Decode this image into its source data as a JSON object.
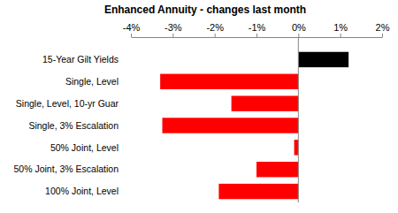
{
  "chart_data": {
    "type": "bar",
    "orientation": "horizontal",
    "title": "Enhanced Annuity - changes last month",
    "categories": [
      "15-Year Gilt Yields",
      "Single, Level",
      "Single, Level, 10-yr Guar",
      "Single, 3% Escalation",
      "50% Joint, Level",
      "50% Joint, 3% Escalation",
      "100% Joint, Level"
    ],
    "values": [
      1.2,
      -3.3,
      -1.6,
      -3.25,
      -0.1,
      -1.0,
      -1.9
    ],
    "colors": [
      "#000000",
      "#ff0000",
      "#ff0000",
      "#ff0000",
      "#ff0000",
      "#ff0000",
      "#ff0000"
    ],
    "xlim": [
      -4,
      2
    ],
    "xticks": [
      {
        "value": -4,
        "label": "-4%"
      },
      {
        "value": -3,
        "label": "-3%"
      },
      {
        "value": -2,
        "label": "-2%"
      },
      {
        "value": -1,
        "label": "-1%"
      },
      {
        "value": 0,
        "label": "0%"
      },
      {
        "value": 1,
        "label": "1%"
      },
      {
        "value": 2,
        "label": "2%"
      }
    ],
    "grid": false
  }
}
